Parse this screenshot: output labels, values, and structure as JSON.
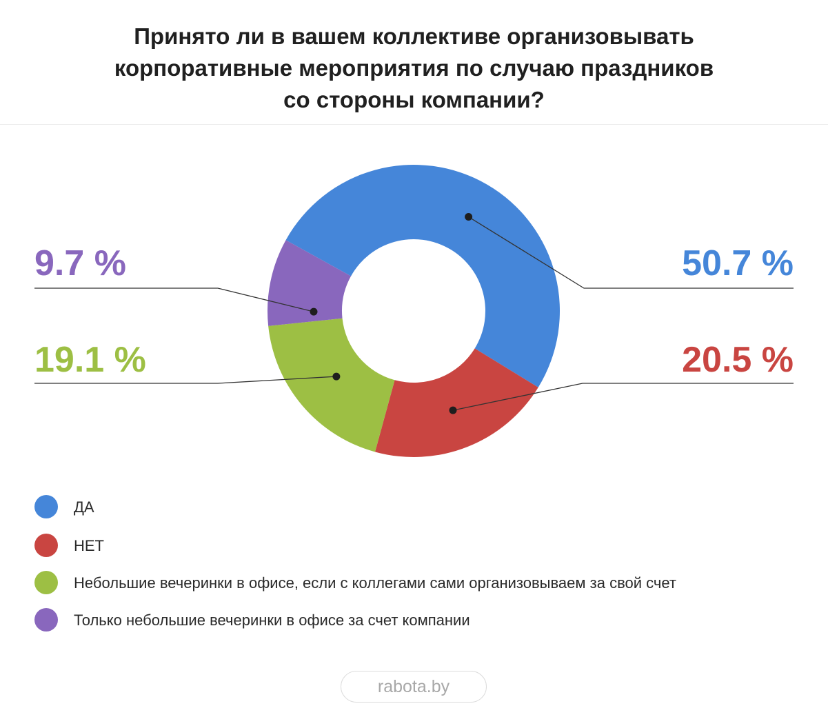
{
  "title_lines": [
    "Принято ли в вашем коллективе организовывать",
    "корпоративные мероприятия по случаю праздников",
    "со стороны компании?"
  ],
  "chart_data": {
    "type": "pie",
    "variant": "donut",
    "slices": [
      {
        "label": "ДА",
        "value": 50.7,
        "display": "50.7 %",
        "color": "#4586d9"
      },
      {
        "label": "НЕТ",
        "value": 20.5,
        "display": "20.5 %",
        "color": "#c94541"
      },
      {
        "label": "Небольшие вечеринки в офисе, если с коллегами сами организовываем за свой счет",
        "value": 19.1,
        "display": "19.1 %",
        "color": "#9dbf44"
      },
      {
        "label": "Только небольшие вечеринки в офисе за счет компании",
        "value": 9.7,
        "display": "9.7 %",
        "color": "#8967bd"
      }
    ]
  },
  "brand": "rabota.by"
}
